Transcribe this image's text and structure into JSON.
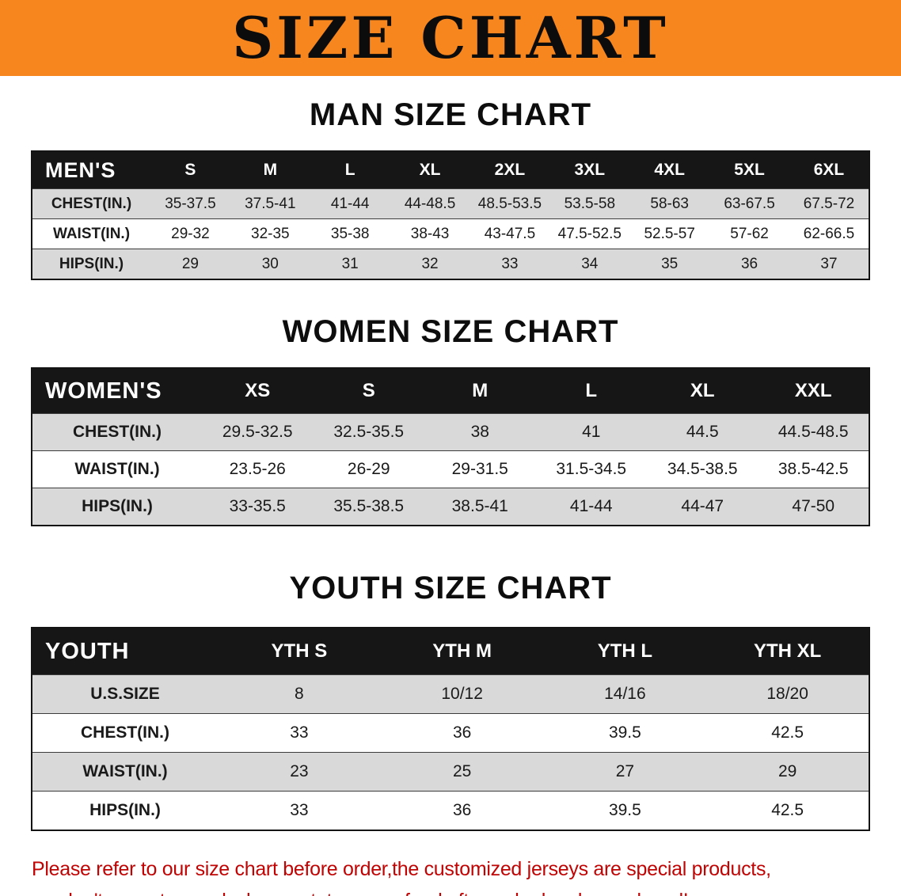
{
  "banner": {
    "title": "SIZE CHART"
  },
  "colors": {
    "banner_bg": "#f6861d",
    "header_bg": "#161616",
    "row_alt": "#d9d9d9",
    "footer_text": "#c00404",
    "heading_text": "#0d0d0d"
  },
  "chart_data": [
    {
      "type": "table",
      "title": "MAN SIZE CHART",
      "corner_label": "MEN'S",
      "columns": [
        "S",
        "M",
        "L",
        "XL",
        "2XL",
        "3XL",
        "4XL",
        "5XL",
        "6XL"
      ],
      "rows": [
        {
          "label": "CHEST(IN.)",
          "values": [
            "35-37.5",
            "37.5-41",
            "41-44",
            "44-48.5",
            "48.5-53.5",
            "53.5-58",
            "58-63",
            "63-67.5",
            "67.5-72"
          ]
        },
        {
          "label": "WAIST(IN.)",
          "values": [
            "29-32",
            "32-35",
            "35-38",
            "38-43",
            "43-47.5",
            "47.5-52.5",
            "52.5-57",
            "57-62",
            "62-66.5"
          ]
        },
        {
          "label": "HIPS(IN.)",
          "values": [
            "29",
            "30",
            "31",
            "32",
            "33",
            "34",
            "35",
            "36",
            "37"
          ]
        }
      ]
    },
    {
      "type": "table",
      "title": "WOMEN SIZE CHART",
      "corner_label": "WOMEN'S",
      "columns": [
        "XS",
        "S",
        "M",
        "L",
        "XL",
        "XXL"
      ],
      "rows": [
        {
          "label": "CHEST(IN.)",
          "values": [
            "29.5-32.5",
            "32.5-35.5",
            "38",
            "41",
            "44.5",
            "44.5-48.5"
          ]
        },
        {
          "label": "WAIST(IN.)",
          "values": [
            "23.5-26",
            "26-29",
            "29-31.5",
            "31.5-34.5",
            "34.5-38.5",
            "38.5-42.5"
          ]
        },
        {
          "label": "HIPS(IN.)",
          "values": [
            "33-35.5",
            "35.5-38.5",
            "38.5-41",
            "41-44",
            "44-47",
            "47-50"
          ]
        }
      ]
    },
    {
      "type": "table",
      "title": "YOUTH SIZE CHART",
      "corner_label": "YOUTH",
      "columns": [
        "YTH S",
        "YTH M",
        "YTH L",
        "YTH XL"
      ],
      "rows": [
        {
          "label": "U.S.SIZE",
          "values": [
            "8",
            "10/12",
            "14/16",
            "18/20"
          ]
        },
        {
          "label": "CHEST(IN.)",
          "values": [
            "33",
            "36",
            "39.5",
            "42.5"
          ]
        },
        {
          "label": "WAIST(IN.)",
          "values": [
            "23",
            "25",
            "27",
            "29"
          ]
        },
        {
          "label": "HIPS(IN.)",
          "values": [
            "33",
            "36",
            "39.5",
            "42.5"
          ]
        }
      ]
    }
  ],
  "footer": {
    "line1": "Please refer to our size chart before order,the customized jerseys are special products,",
    "line2": "we don't accept cancel, change, teturn or refund after order has been placed!"
  }
}
